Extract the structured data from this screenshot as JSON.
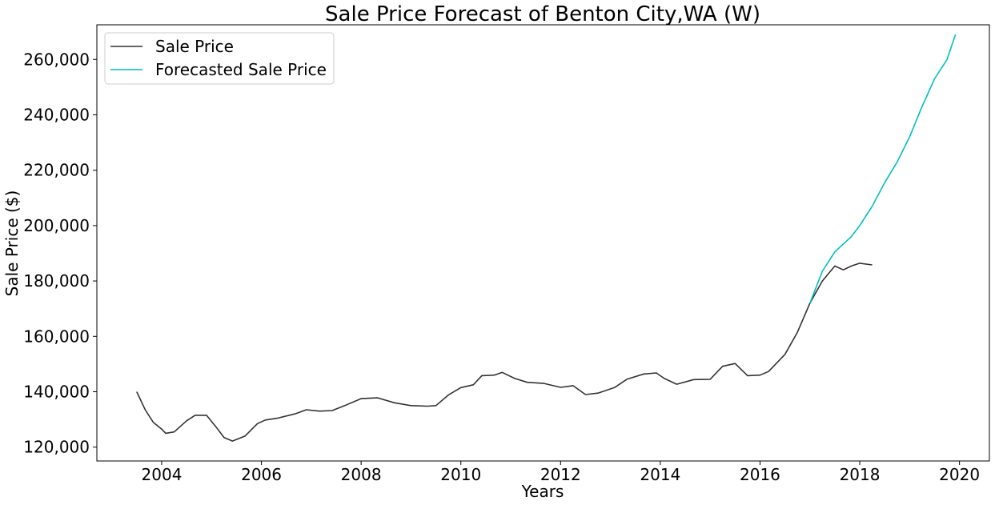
{
  "chart_data": {
    "type": "line",
    "title": "Sale Price Forecast of Benton City,WA (W)",
    "xlabel": "Years",
    "ylabel": "Sale Price ($)",
    "xlim": [
      2002.7,
      2020.6
    ],
    "ylim": [
      115000,
      272500
    ],
    "x_ticks": [
      2004,
      2006,
      2008,
      2010,
      2012,
      2014,
      2016,
      2018,
      2020
    ],
    "x_tick_labels": [
      "2004",
      "2006",
      "2008",
      "2010",
      "2012",
      "2014",
      "2016",
      "2018",
      "2020"
    ],
    "y_ticks": [
      120000,
      140000,
      160000,
      180000,
      200000,
      220000,
      240000,
      260000
    ],
    "y_tick_labels": [
      "120,000",
      "140,000",
      "160,000",
      "180,000",
      "200,000",
      "220,000",
      "240,000",
      "260,000"
    ],
    "grid": false,
    "legend_position": "top-left",
    "series": [
      {
        "name": "Sale Price",
        "color": "#333333",
        "points": [
          [
            2003.5,
            140000
          ],
          [
            2003.67,
            133500
          ],
          [
            2003.83,
            129000
          ],
          [
            2004.0,
            126500
          ],
          [
            2004.08,
            125000
          ],
          [
            2004.25,
            125500
          ],
          [
            2004.5,
            129500
          ],
          [
            2004.67,
            131500
          ],
          [
            2004.9,
            131500
          ],
          [
            2005.08,
            127500
          ],
          [
            2005.25,
            123500
          ],
          [
            2005.42,
            122200
          ],
          [
            2005.67,
            124000
          ],
          [
            2005.92,
            128500
          ],
          [
            2006.08,
            129800
          ],
          [
            2006.33,
            130500
          ],
          [
            2006.67,
            132000
          ],
          [
            2006.9,
            133500
          ],
          [
            2007.17,
            133000
          ],
          [
            2007.42,
            133200
          ],
          [
            2007.67,
            135000
          ],
          [
            2008.0,
            137500
          ],
          [
            2008.33,
            137800
          ],
          [
            2008.67,
            136000
          ],
          [
            2009.0,
            135000
          ],
          [
            2009.33,
            134800
          ],
          [
            2009.5,
            135000
          ],
          [
            2009.75,
            138800
          ],
          [
            2010.0,
            141500
          ],
          [
            2010.25,
            142500
          ],
          [
            2010.42,
            145800
          ],
          [
            2010.67,
            146000
          ],
          [
            2010.83,
            147000
          ],
          [
            2011.08,
            144800
          ],
          [
            2011.33,
            143400
          ],
          [
            2011.67,
            143000
          ],
          [
            2012.0,
            141600
          ],
          [
            2012.25,
            142200
          ],
          [
            2012.5,
            139000
          ],
          [
            2012.75,
            139500
          ],
          [
            2013.08,
            141500
          ],
          [
            2013.33,
            144500
          ],
          [
            2013.67,
            146400
          ],
          [
            2013.92,
            146800
          ],
          [
            2014.08,
            144800
          ],
          [
            2014.33,
            142700
          ],
          [
            2014.67,
            144400
          ],
          [
            2015.0,
            144500
          ],
          [
            2015.25,
            149200
          ],
          [
            2015.5,
            150200
          ],
          [
            2015.75,
            145800
          ],
          [
            2016.0,
            146000
          ],
          [
            2016.17,
            147300
          ],
          [
            2016.5,
            153500
          ],
          [
            2016.75,
            161500
          ],
          [
            2017.0,
            172000
          ],
          [
            2017.25,
            180000
          ],
          [
            2017.5,
            185400
          ],
          [
            2017.67,
            184000
          ],
          [
            2017.83,
            185400
          ],
          [
            2018.0,
            186400
          ],
          [
            2018.25,
            185800
          ]
        ]
      },
      {
        "name": "Forecasted Sale Price",
        "color": "#00bfbf",
        "points": [
          [
            2017.0,
            172000
          ],
          [
            2017.25,
            183500
          ],
          [
            2017.5,
            190500
          ],
          [
            2017.83,
            196000
          ],
          [
            2018.0,
            200000
          ],
          [
            2018.25,
            207000
          ],
          [
            2018.5,
            215500
          ],
          [
            2018.75,
            223000
          ],
          [
            2019.0,
            232000
          ],
          [
            2019.25,
            243000
          ],
          [
            2019.5,
            253000
          ],
          [
            2019.75,
            260000
          ],
          [
            2019.92,
            269000
          ]
        ]
      }
    ]
  }
}
